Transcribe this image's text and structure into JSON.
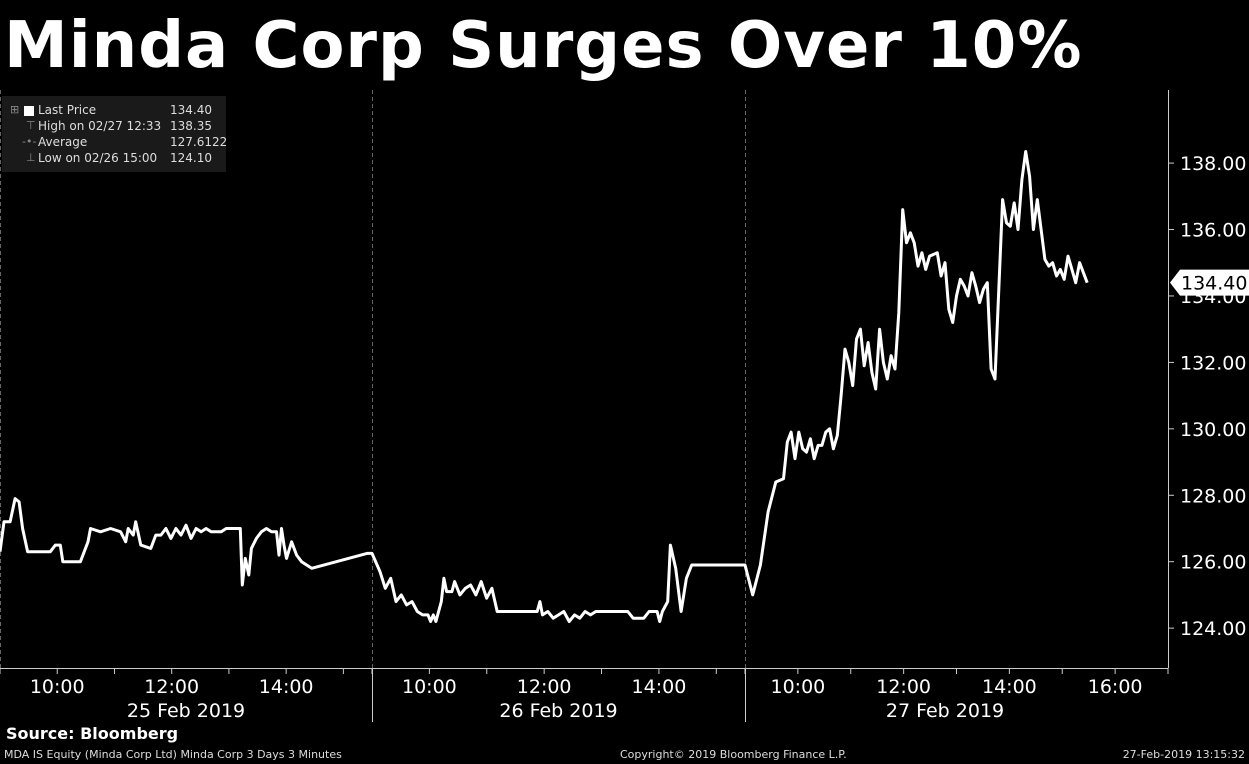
{
  "title": "Minda Corp Surges Over 10%",
  "legend": {
    "rows": [
      {
        "label": "Last Price",
        "value": "134.40",
        "icon": "last-price-icon"
      },
      {
        "label": "High on 02/27 12:33",
        "value": "138.35",
        "icon": "high-marker-icon"
      },
      {
        "label": "Average",
        "value": "127.6122",
        "icon": "average-line-icon"
      },
      {
        "label": "Low on 02/26 15:00",
        "value": "124.10",
        "icon": "low-marker-icon"
      }
    ]
  },
  "source": "Source: Bloomberg",
  "footer": {
    "left": "MDA IS Equity (Minda Corp Ltd) Minda Corp 3 Days 3 Minutes",
    "center": "Copyright© 2019 Bloomberg Finance L.P.",
    "right": "27-Feb-2019 13:15:32"
  },
  "chart_data": {
    "type": "line",
    "ylim": [
      122.8,
      140.2
    ],
    "yticks": [
      124,
      126,
      128,
      130,
      132,
      134,
      136,
      138
    ],
    "ytick_labels": [
      "124.00",
      "126.00",
      "128.00",
      "130.00",
      "132.00",
      "134.00",
      "136.00",
      "138.00"
    ],
    "last_price_label": "134.40",
    "last_price": 134.4,
    "grid": false,
    "days": [
      {
        "date": "25 Feb 2019",
        "ticks": [
          "10:00",
          "12:00",
          "14:00"
        ],
        "tick_hours": [
          10,
          12,
          14
        ],
        "start_hour": 9.0,
        "end_hour": 15.5
      },
      {
        "date": "26 Feb 2019",
        "ticks": [
          "10:00",
          "12:00",
          "14:00"
        ],
        "tick_hours": [
          10,
          12,
          14
        ],
        "start_hour": 9.0,
        "end_hour": 15.5
      },
      {
        "date": "27 Feb 2019",
        "ticks": [
          "10:00",
          "12:00",
          "14:00",
          "16:00"
        ],
        "tick_hours": [
          10,
          12,
          14,
          16
        ],
        "start_hour": 9.0,
        "end_hour": 17.0
      }
    ],
    "series": [
      {
        "color": "#ffffff",
        "segments": [
          [
            [
              9.0,
              126.3
            ],
            [
              9.08,
              127.2
            ],
            [
              9.2,
              127.2
            ],
            [
              9.3,
              127.9
            ],
            [
              9.38,
              127.8
            ],
            [
              9.45,
              127.0
            ],
            [
              9.55,
              126.3
            ],
            [
              10.0,
              126.3
            ],
            [
              10.1,
              126.5
            ],
            [
              10.2,
              126.5
            ],
            [
              10.25,
              126.0
            ],
            [
              10.45,
              126.0
            ],
            [
              10.6,
              126.0
            ],
            [
              10.75,
              126.6
            ],
            [
              10.8,
              127.0
            ],
            [
              11.0,
              126.9
            ],
            [
              11.2,
              127.0
            ],
            [
              11.4,
              126.9
            ],
            [
              11.5,
              126.6
            ],
            [
              11.55,
              127.0
            ],
            [
              11.65,
              126.8
            ],
            [
              11.7,
              127.2
            ],
            [
              11.8,
              126.5
            ],
            [
              12.0,
              126.4
            ],
            [
              12.1,
              126.8
            ],
            [
              12.2,
              126.8
            ],
            [
              12.3,
              127.0
            ],
            [
              12.4,
              126.7
            ],
            [
              12.5,
              127.0
            ],
            [
              12.6,
              126.8
            ],
            [
              12.7,
              127.1
            ],
            [
              12.8,
              126.7
            ],
            [
              12.9,
              127.0
            ],
            [
              13.0,
              126.9
            ],
            [
              13.1,
              127.0
            ],
            [
              13.2,
              126.9
            ],
            [
              13.4,
              126.9
            ],
            [
              13.5,
              127.0
            ],
            [
              13.6,
              127.0
            ],
            [
              13.7,
              127.0
            ],
            [
              13.78,
              127.0
            ],
            [
              13.82,
              125.3
            ],
            [
              13.88,
              126.1
            ],
            [
              13.95,
              125.6
            ],
            [
              14.0,
              126.4
            ],
            [
              14.1,
              126.7
            ],
            [
              14.2,
              126.9
            ],
            [
              14.3,
              127.0
            ],
            [
              14.4,
              126.9
            ],
            [
              14.5,
              126.9
            ],
            [
              14.55,
              126.2
            ],
            [
              14.6,
              127.0
            ],
            [
              14.65,
              126.5
            ],
            [
              14.7,
              126.1
            ],
            [
              14.8,
              126.6
            ],
            [
              14.9,
              126.2
            ],
            [
              15.0,
              126.0
            ],
            [
              15.2,
              125.8
            ],
            [
              16.3,
              126.25
            ],
            [
              16.4,
              126.25
            ],
            [
              16.55,
              125.7
            ],
            [
              16.65,
              125.2
            ],
            [
              16.75,
              125.5
            ],
            [
              16.85,
              124.8
            ],
            [
              16.95,
              125.0
            ],
            [
              17.05,
              124.7
            ],
            [
              17.15,
              124.8
            ],
            [
              17.25,
              124.5
            ],
            [
              17.35,
              124.4
            ],
            [
              17.45,
              124.4
            ],
            [
              17.5,
              124.2
            ],
            [
              17.55,
              124.4
            ],
            [
              17.6,
              124.2
            ],
            [
              17.7,
              124.8
            ],
            [
              17.75,
              125.5
            ],
            [
              17.8,
              125.1
            ],
            [
              17.9,
              125.1
            ],
            [
              17.95,
              125.4
            ],
            [
              18.05,
              125.0
            ],
            [
              18.15,
              125.2
            ],
            [
              18.25,
              125.3
            ],
            [
              18.35,
              125.0
            ],
            [
              18.45,
              125.4
            ],
            [
              18.55,
              124.9
            ],
            [
              18.65,
              125.2
            ],
            [
              18.75,
              124.5
            ],
            [
              19.0,
              124.5
            ],
            [
              19.3,
              124.5
            ],
            [
              19.5,
              124.5
            ],
            [
              19.55,
              124.8
            ],
            [
              19.6,
              124.4
            ],
            [
              19.7,
              124.5
            ],
            [
              19.8,
              124.3
            ],
            [
              19.9,
              124.4
            ],
            [
              20.0,
              124.5
            ],
            [
              20.1,
              124.2
            ],
            [
              20.2,
              124.4
            ],
            [
              20.3,
              124.3
            ],
            [
              20.4,
              124.5
            ],
            [
              20.5,
              124.4
            ],
            [
              20.6,
              124.5
            ],
            [
              21.0,
              124.5
            ],
            [
              21.2,
              124.5
            ],
            [
              21.3,
              124.3
            ],
            [
              21.5,
              124.3
            ],
            [
              21.6,
              124.5
            ],
            [
              21.75,
              124.5
            ],
            [
              21.8,
              124.2
            ],
            [
              21.85,
              124.5
            ],
            [
              21.95,
              124.8
            ],
            [
              22.0,
              126.5
            ],
            [
              22.1,
              125.8
            ],
            [
              22.2,
              124.5
            ],
            [
              22.3,
              125.5
            ],
            [
              22.4,
              125.9
            ],
            [
              22.8,
              125.9
            ],
            [
              23.4,
              125.9
            ],
            [
              23.5,
              125.0
            ],
            [
              23.6,
              125.9
            ],
            [
              23.7,
              127.5
            ],
            [
              23.8,
              128.4
            ],
            [
              23.9,
              128.5
            ],
            [
              23.95,
              129.6
            ],
            [
              24.0,
              129.9
            ],
            [
              24.05,
              129.1
            ],
            [
              24.1,
              129.9
            ],
            [
              24.15,
              129.4
            ],
            [
              24.2,
              129.3
            ],
            [
              24.25,
              129.7
            ],
            [
              24.3,
              129.1
            ],
            [
              24.35,
              129.5
            ],
            [
              24.4,
              129.5
            ],
            [
              24.45,
              129.9
            ],
            [
              24.5,
              130.0
            ],
            [
              24.55,
              129.4
            ],
            [
              24.6,
              129.8
            ],
            [
              24.65,
              131.0
            ],
            [
              24.7,
              132.4
            ],
            [
              24.75,
              132.0
            ],
            [
              24.8,
              131.3
            ],
            [
              24.85,
              132.7
            ],
            [
              24.9,
              133.0
            ],
            [
              24.95,
              131.9
            ],
            [
              25.0,
              132.6
            ],
            [
              25.05,
              131.7
            ],
            [
              25.1,
              131.2
            ],
            [
              25.15,
              133.0
            ],
            [
              25.2,
              132.0
            ],
            [
              25.25,
              131.5
            ],
            [
              25.3,
              132.2
            ],
            [
              25.35,
              131.8
            ],
            [
              25.4,
              133.5
            ],
            [
              25.45,
              136.6
            ],
            [
              25.5,
              135.6
            ],
            [
              25.55,
              135.9
            ],
            [
              25.6,
              135.6
            ],
            [
              25.65,
              134.9
            ],
            [
              25.7,
              135.3
            ],
            [
              25.75,
              134.8
            ],
            [
              25.8,
              135.2
            ],
            [
              25.9,
              135.3
            ],
            [
              25.95,
              134.6
            ],
            [
              26.0,
              135.0
            ],
            [
              26.05,
              133.6
            ],
            [
              26.1,
              133.2
            ],
            [
              26.15,
              134.0
            ],
            [
              26.2,
              134.5
            ],
            [
              26.25,
              134.3
            ],
            [
              26.3,
              134.0
            ],
            [
              26.35,
              134.7
            ],
            [
              26.4,
              134.3
            ],
            [
              26.45,
              133.8
            ],
            [
              26.5,
              134.2
            ],
            [
              26.55,
              134.4
            ],
            [
              26.6,
              131.8
            ],
            [
              26.65,
              131.5
            ],
            [
              26.7,
              134.2
            ],
            [
              26.75,
              136.9
            ],
            [
              26.8,
              136.2
            ],
            [
              26.85,
              136.1
            ],
            [
              26.9,
              136.8
            ],
            [
              26.95,
              136.0
            ],
            [
              27.0,
              137.5
            ],
            [
              27.05,
              138.35
            ],
            [
              27.1,
              137.6
            ],
            [
              27.15,
              136.0
            ],
            [
              27.2,
              136.9
            ],
            [
              27.25,
              136.0
            ],
            [
              27.3,
              135.1
            ],
            [
              27.35,
              134.9
            ],
            [
              27.4,
              135.0
            ],
            [
              27.45,
              134.6
            ],
            [
              27.5,
              134.8
            ],
            [
              27.55,
              134.5
            ],
            [
              27.6,
              135.2
            ],
            [
              27.65,
              134.8
            ],
            [
              27.7,
              134.4
            ],
            [
              27.75,
              135.0
            ],
            [
              27.8,
              134.7
            ],
            [
              27.85,
              134.4
            ]
          ]
        ]
      }
    ]
  }
}
